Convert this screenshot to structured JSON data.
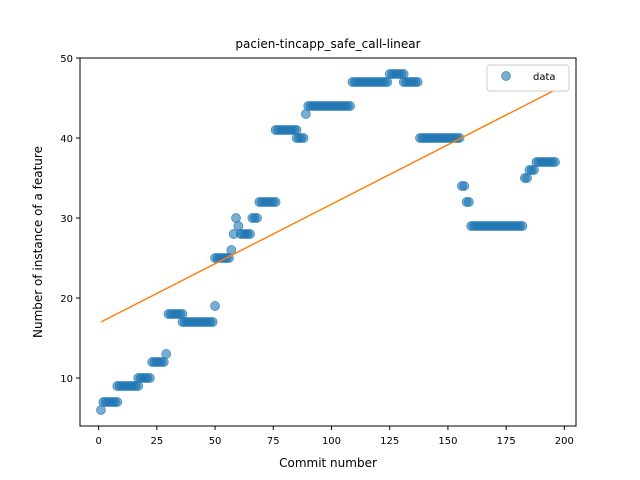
{
  "chart_data": {
    "type": "scatter",
    "title": "pacien-tincapp_safe_call-linear",
    "xlabel": "Commit number",
    "ylabel": "Number of instance of a feature",
    "xlim": [
      -8,
      205
    ],
    "ylim": [
      4,
      50
    ],
    "xticks": [
      0,
      25,
      50,
      75,
      100,
      125,
      150,
      175,
      200
    ],
    "yticks": [
      10,
      20,
      30,
      40,
      50
    ],
    "legend": {
      "position": "top-right",
      "entries": [
        "data"
      ]
    },
    "colors": {
      "data": "#1f77b4",
      "fit": "#ff7f0e"
    },
    "series": [
      {
        "name": "data",
        "kind": "scatter",
        "segments": [
          {
            "x_start": 1,
            "x_end": 1,
            "y": 6
          },
          {
            "x_start": 2,
            "x_end": 8,
            "y": 7
          },
          {
            "x_start": 8,
            "x_end": 17,
            "y": 9
          },
          {
            "x_start": 17,
            "x_end": 22,
            "y": 10
          },
          {
            "x_start": 23,
            "x_end": 28,
            "y": 12
          },
          {
            "x_start": 29,
            "x_end": 29,
            "y": 13
          },
          {
            "x_start": 30,
            "x_end": 36,
            "y": 18
          },
          {
            "x_start": 36,
            "x_end": 49,
            "y": 17
          },
          {
            "x_start": 50,
            "x_end": 50,
            "y": 19
          },
          {
            "x_start": 50,
            "x_end": 56,
            "y": 25
          },
          {
            "x_start": 57,
            "x_end": 57,
            "y": 26
          },
          {
            "x_start": 58,
            "x_end": 58,
            "y": 28
          },
          {
            "x_start": 59,
            "x_end": 59,
            "y": 30
          },
          {
            "x_start": 60,
            "x_end": 60,
            "y": 29
          },
          {
            "x_start": 61,
            "x_end": 65,
            "y": 28
          },
          {
            "x_start": 66,
            "x_end": 68,
            "y": 30
          },
          {
            "x_start": 69,
            "x_end": 76,
            "y": 32
          },
          {
            "x_start": 76,
            "x_end": 85,
            "y": 41
          },
          {
            "x_start": 85,
            "x_end": 88,
            "y": 40
          },
          {
            "x_start": 89,
            "x_end": 89,
            "y": 43
          },
          {
            "x_start": 90,
            "x_end": 108,
            "y": 44
          },
          {
            "x_start": 109,
            "x_end": 124,
            "y": 47
          },
          {
            "x_start": 125,
            "x_end": 131,
            "y": 48
          },
          {
            "x_start": 131,
            "x_end": 137,
            "y": 47
          },
          {
            "x_start": 138,
            "x_end": 155,
            "y": 40
          },
          {
            "x_start": 156,
            "x_end": 157,
            "y": 34
          },
          {
            "x_start": 158,
            "x_end": 159,
            "y": 32
          },
          {
            "x_start": 160,
            "x_end": 182,
            "y": 29
          },
          {
            "x_start": 183,
            "x_end": 184,
            "y": 35
          },
          {
            "x_start": 185,
            "x_end": 187,
            "y": 36
          },
          {
            "x_start": 188,
            "x_end": 196,
            "y": 37
          }
        ]
      },
      {
        "name": "",
        "kind": "line",
        "x": [
          1,
          196
        ],
        "y": [
          17,
          46
        ]
      }
    ]
  }
}
